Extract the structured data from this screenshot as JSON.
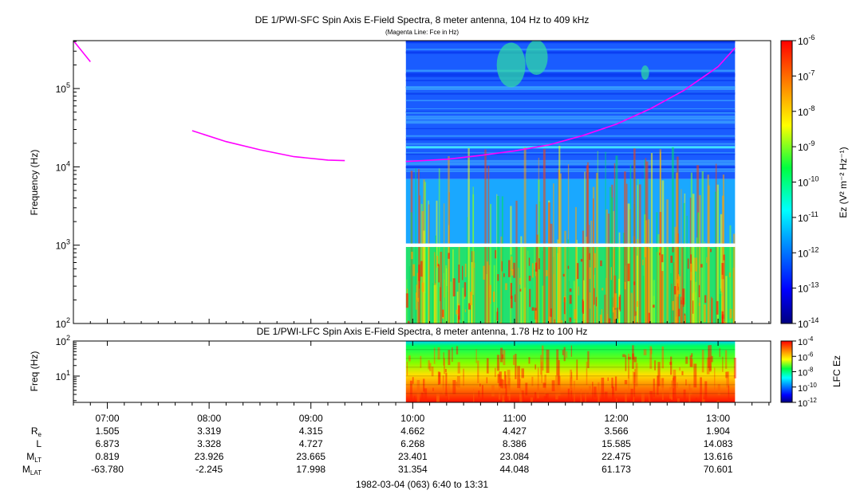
{
  "top_panel": {
    "title": "DE 1/PWI-SFC  Spin Axis E-Field Spectra, 8 meter antenna, 104 Hz to 409 kHz",
    "subtitle": "(Magenta Line: Fce in Hz)",
    "ylabel": "Frequency (Hz)",
    "y_ticks": [
      {
        "base": "10",
        "exp": "2"
      },
      {
        "base": "10",
        "exp": "3"
      },
      {
        "base": "10",
        "exp": "4"
      },
      {
        "base": "10",
        "exp": "5"
      }
    ],
    "colorbar_label": "Ez (V² m⁻² Hz⁻¹)",
    "colorbar_ticks": [
      {
        "base": "10",
        "exp": "-6"
      },
      {
        "base": "10",
        "exp": "-7"
      },
      {
        "base": "10",
        "exp": "-8"
      },
      {
        "base": "10",
        "exp": "-9"
      },
      {
        "base": "10",
        "exp": "-10"
      },
      {
        "base": "10",
        "exp": "-11"
      },
      {
        "base": "10",
        "exp": "-12"
      },
      {
        "base": "10",
        "exp": "-13"
      },
      {
        "base": "10",
        "exp": "-14"
      }
    ]
  },
  "bottom_panel": {
    "title": "DE 1/PWI-LFC  Spin Axis E-Field Spectra, 8 meter antenna, 1.78 Hz to 100 Hz",
    "ylabel": "Freq (Hz)",
    "y_ticks": [
      {
        "base": "10",
        "exp": "1"
      },
      {
        "base": "10",
        "exp": "2"
      }
    ],
    "colorbar_label": "LFC Ez",
    "colorbar_ticks": [
      {
        "base": "10",
        "exp": "-4"
      },
      {
        "base": "10",
        "exp": "-6"
      },
      {
        "base": "10",
        "exp": "-8"
      },
      {
        "base": "10",
        "exp": "-10"
      },
      {
        "base": "10",
        "exp": "-12"
      }
    ]
  },
  "time_axis": {
    "ticks": [
      "07:00",
      "08:00",
      "09:00",
      "10:00",
      "11:00",
      "12:00",
      "13:00"
    ],
    "footer": "1982-03-04 (063) 6:40 to 13:31"
  },
  "ephemeris": {
    "rows": [
      {
        "label": "R",
        "sub": "e",
        "values": [
          "1.505",
          "3.319",
          "4.315",
          "4.662",
          "4.427",
          "3.566",
          "1.904"
        ]
      },
      {
        "label": "L",
        "sub": "",
        "values": [
          "6.873",
          "3.328",
          "4.727",
          "6.268",
          "8.386",
          "15.585",
          "14.083"
        ]
      },
      {
        "label": "M",
        "sub": "LT",
        "values": [
          "0.819",
          "23.926",
          "23.665",
          "23.401",
          "23.084",
          "22.475",
          "13.616"
        ]
      },
      {
        "label": "M",
        "sub": "LAT",
        "values": [
          "-63.780",
          "-2.245",
          "17.998",
          "31.354",
          "44.048",
          "61.173",
          "70.601"
        ]
      }
    ]
  },
  "chart_data": [
    {
      "type": "heatmap",
      "title": "DE 1/PWI-SFC  Spin Axis E-Field Spectra, 8 meter antenna, 104 Hz to 409 kHz",
      "subtitle": "(Magenta Line: Fce in Hz)",
      "xlabel": "",
      "ylabel": "Frequency (Hz)",
      "y_scale": "log",
      "ylim": [
        100,
        409000
      ],
      "x_range": [
        "06:40",
        "13:31"
      ],
      "data_coverage": [
        "09:56",
        "13:10"
      ],
      "gap_band_hz": [
        950,
        1050
      ],
      "colorbar": {
        "label": "Ez (V² m⁻² Hz⁻¹)",
        "range": [
          1e-14,
          1e-06
        ],
        "scale": "log"
      },
      "series": [
        {
          "name": "Fce",
          "color": "#ff00ff",
          "points": [
            {
              "t": "06:40",
              "f": 409000
            },
            {
              "t": "06:50",
              "f": 220000
            },
            {
              "t": "07:50",
              "f": 29000
            },
            {
              "t": "08:10",
              "f": 21000
            },
            {
              "t": "08:30",
              "f": 16500
            },
            {
              "t": "08:50",
              "f": 13500
            },
            {
              "t": "09:10",
              "f": 12200
            },
            {
              "t": "09:20",
              "f": 12000
            },
            {
              "t": "09:56",
              "f": 11700
            },
            {
              "t": "10:20",
              "f": 12500
            },
            {
              "t": "10:40",
              "f": 14000
            },
            {
              "t": "11:00",
              "f": 16000
            },
            {
              "t": "11:20",
              "f": 19000
            },
            {
              "t": "11:40",
              "f": 25000
            },
            {
              "t": "12:00",
              "f": 35000
            },
            {
              "t": "12:20",
              "f": 55000
            },
            {
              "t": "12:40",
              "f": 95000
            },
            {
              "t": "13:00",
              "f": 190000
            },
            {
              "t": "13:10",
              "f": 330000
            }
          ]
        }
      ]
    },
    {
      "type": "heatmap",
      "title": "DE 1/PWI-LFC  Spin Axis E-Field Spectra, 8 meter antenna, 1.78 Hz to 100 Hz",
      "xlabel": "",
      "ylabel": "Freq (Hz)",
      "y_scale": "log",
      "ylim": [
        1.78,
        100
      ],
      "x_range": [
        "06:40",
        "13:31"
      ],
      "data_coverage": [
        "09:56",
        "13:10"
      ],
      "colorbar": {
        "label": "LFC Ez",
        "range": [
          1e-12,
          0.0001
        ],
        "scale": "log"
      }
    }
  ]
}
